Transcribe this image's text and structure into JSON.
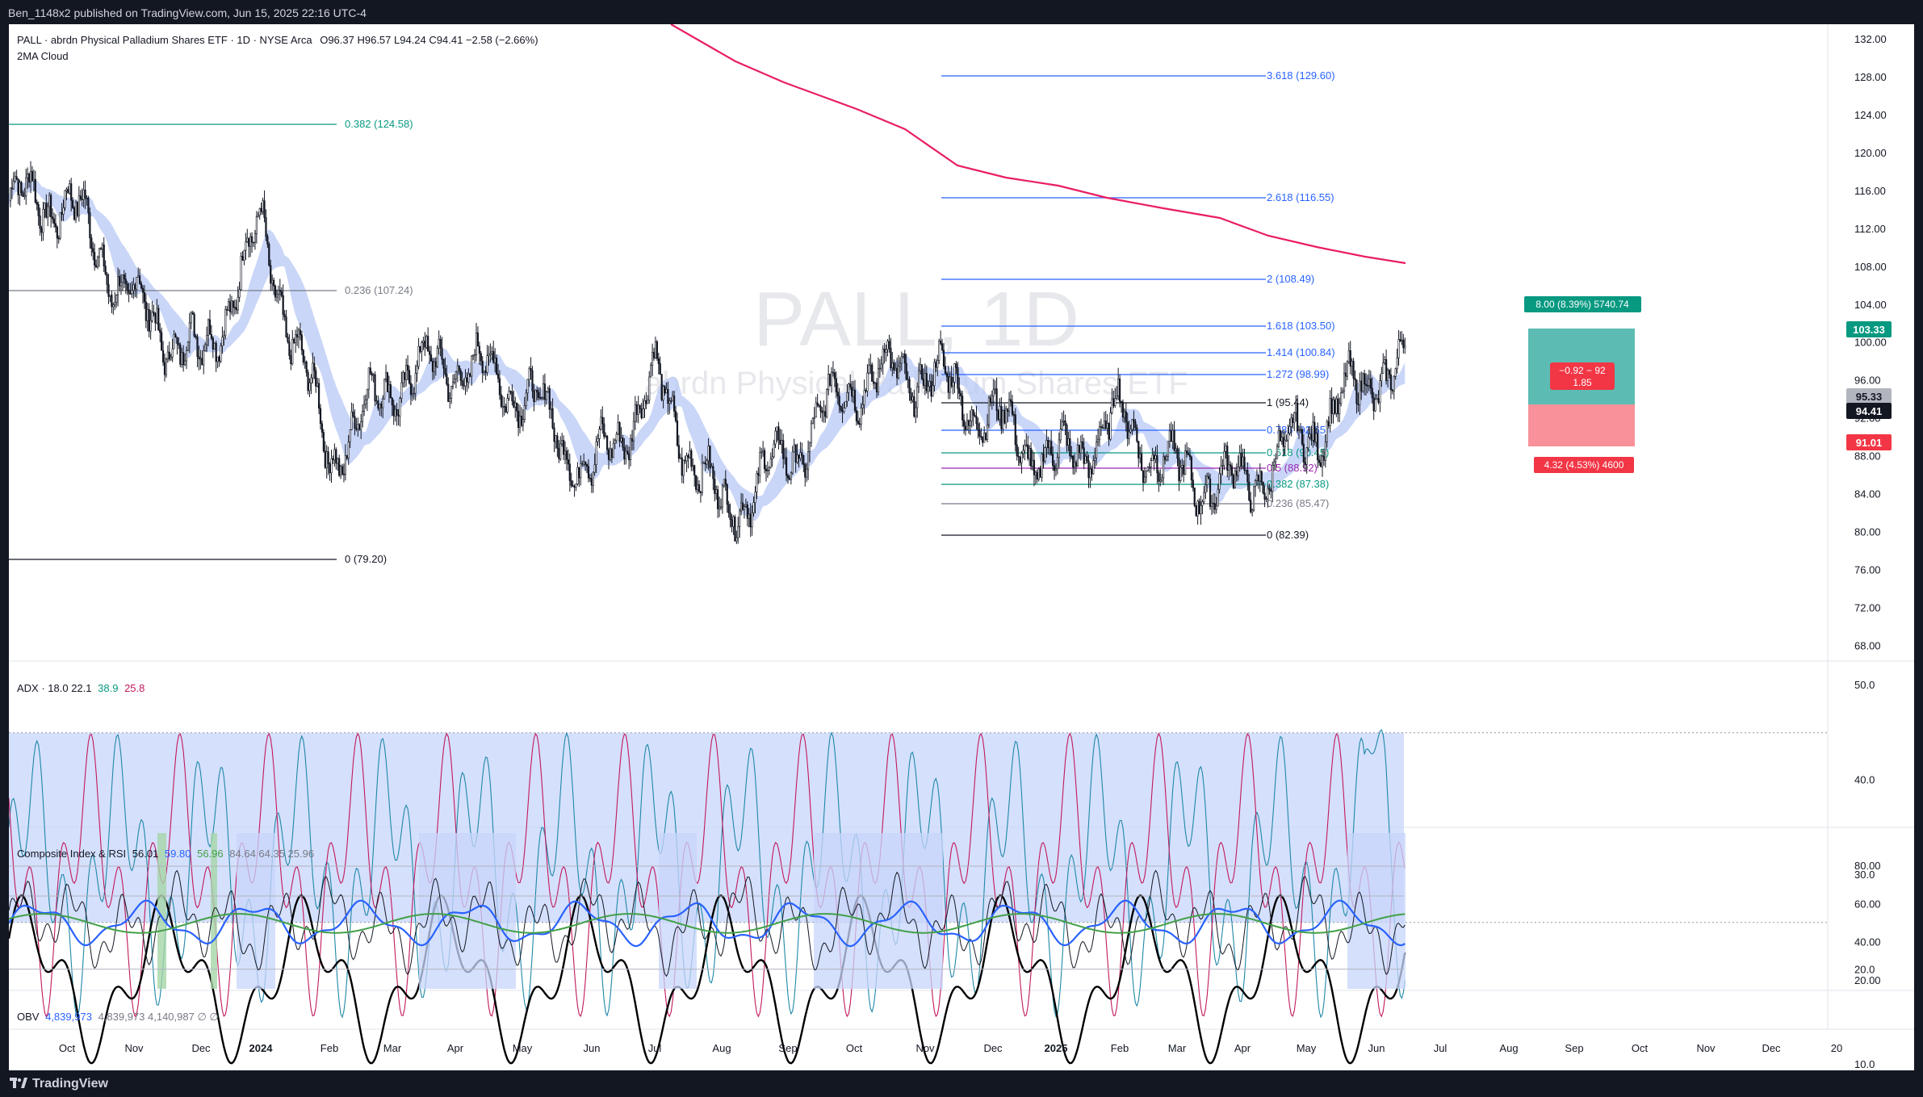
{
  "top_bar": {
    "text": "Ben_1148x2 published on TradingView.com, Jun 15, 2025 22:16 UTC-4"
  },
  "header": {
    "line1": "PALL · abrdn Physical Palladium Shares ETF · 1D · NYSE Arca",
    "ohlc": "O96.37  H96.57  L94.24  C94.41  −2.58 (−2.66%)",
    "indicator": "2MA Cloud"
  },
  "watermark": {
    "symbol": "PALL, 1D",
    "name": "abrdn Physical Palladium Shares ETF"
  },
  "branding": {
    "logo_text": "TradingView"
  },
  "colors": {
    "background": "#131722",
    "pane": "#ffffff",
    "fib_blue": "#2962ff",
    "fib_green": "#089981",
    "fib_purple": "#9c27b0",
    "ma_long": "#e91e63",
    "cloud": "#b7c8f5",
    "tp_box": "#26a69a",
    "sl_box": "#f23645",
    "adx_plus": "#1e88a8",
    "adx_minus": "#c2185b",
    "rsi_blue": "#2962ff",
    "rsi_green": "#43a047"
  },
  "panes": {
    "adx": {
      "label": "ADX · 18.0  22.1",
      "v1": "38.9",
      "v2": "25.8",
      "ticks": [
        "50.0",
        "40.0",
        "30.0",
        "20.0",
        "10.0"
      ]
    },
    "composite": {
      "label": "Composite Index & RSI",
      "v1": "56.01",
      "v2": "59.80",
      "v3": "56.96",
      "v4": "84.64  64.35  25.96",
      "ticks": [
        "80.00",
        "60.00",
        "40.00",
        "20.00"
      ]
    },
    "obv": {
      "label": "OBV",
      "v1": "4,839,973",
      "v2": "4,839,973  4,140,987  ∅  ∅"
    }
  },
  "price_axis": [
    "132.00",
    "128.00",
    "124.00",
    "120.00",
    "116.00",
    "112.00",
    "108.00",
    "104.00",
    "100.00",
    "96.00",
    "92.00",
    "88.00",
    "84.00",
    "80.00",
    "76.00",
    "72.00",
    "68.00"
  ],
  "price_tags": [
    {
      "label": "103.33",
      "color": "#089981"
    },
    {
      "label": "95.33",
      "color": "#b2b5be"
    },
    {
      "label": "94.41",
      "color": "#131722"
    },
    {
      "label": "91.01",
      "color": "#f23645"
    }
  ],
  "position": {
    "target_label": "8.00 (8.39%) 5740.74",
    "stop_label": "4.32 (4.53%) 4600",
    "center_line1": "−0.92 − 92",
    "center_line2": "1.85"
  },
  "fib_extension": [
    {
      "label": "3.618 (129.60)"
    },
    {
      "label": "2.618 (116.55)"
    },
    {
      "label": "2 (108.49)"
    },
    {
      "label": "1.618 (103.50)"
    },
    {
      "label": "1.414 (100.84)"
    },
    {
      "label": "1.272 (98.99)"
    },
    {
      "label": "1 (95.44)"
    },
    {
      "label": "0.786 (92.65)"
    },
    {
      "label": "0.618 (90.45)"
    },
    {
      "label": "0.5 (88.92)"
    },
    {
      "label": "0.382 (87.38)"
    },
    {
      "label": "0.236 (85.47)"
    },
    {
      "label": "0 (82.39)"
    }
  ],
  "fib_retracement": [
    {
      "label": "0.382 (124.58)"
    },
    {
      "label": "0.236 (107.24)"
    },
    {
      "label": "0 (79.20)"
    }
  ],
  "time_axis": [
    "Oct",
    "Nov",
    "Dec",
    "2024",
    "Feb",
    "Mar",
    "Apr",
    "May",
    "Jun",
    "Jul",
    "Aug",
    "Sep",
    "Oct",
    "Nov",
    "Dec",
    "2025",
    "Feb",
    "Mar",
    "Apr",
    "May",
    "Jun",
    "Jul",
    "Aug",
    "Sep",
    "Oct",
    "Nov",
    "Dec",
    "20"
  ],
  "chart_data": {
    "type": "line",
    "title": "PALL · abrdn Physical Palladium Shares ETF · 1D · NYSE Arca",
    "ylim": [
      68,
      132
    ],
    "x": [
      "Oct",
      "Nov",
      "Dec",
      "2024",
      "Feb",
      "Mar",
      "Apr",
      "May",
      "Jun",
      "Jul",
      "Aug",
      "Sep",
      "Oct",
      "Nov",
      "Dec",
      "2025",
      "Feb",
      "Mar",
      "Apr",
      "May",
      "Jun"
    ],
    "series": [
      {
        "values": [
          115,
          104,
          98,
          112,
          88,
          96,
          98,
          95,
          86,
          96,
          82,
          88,
          96,
          97,
          92,
          87,
          92,
          86,
          85,
          90,
          97
        ]
      }
    ]
  }
}
